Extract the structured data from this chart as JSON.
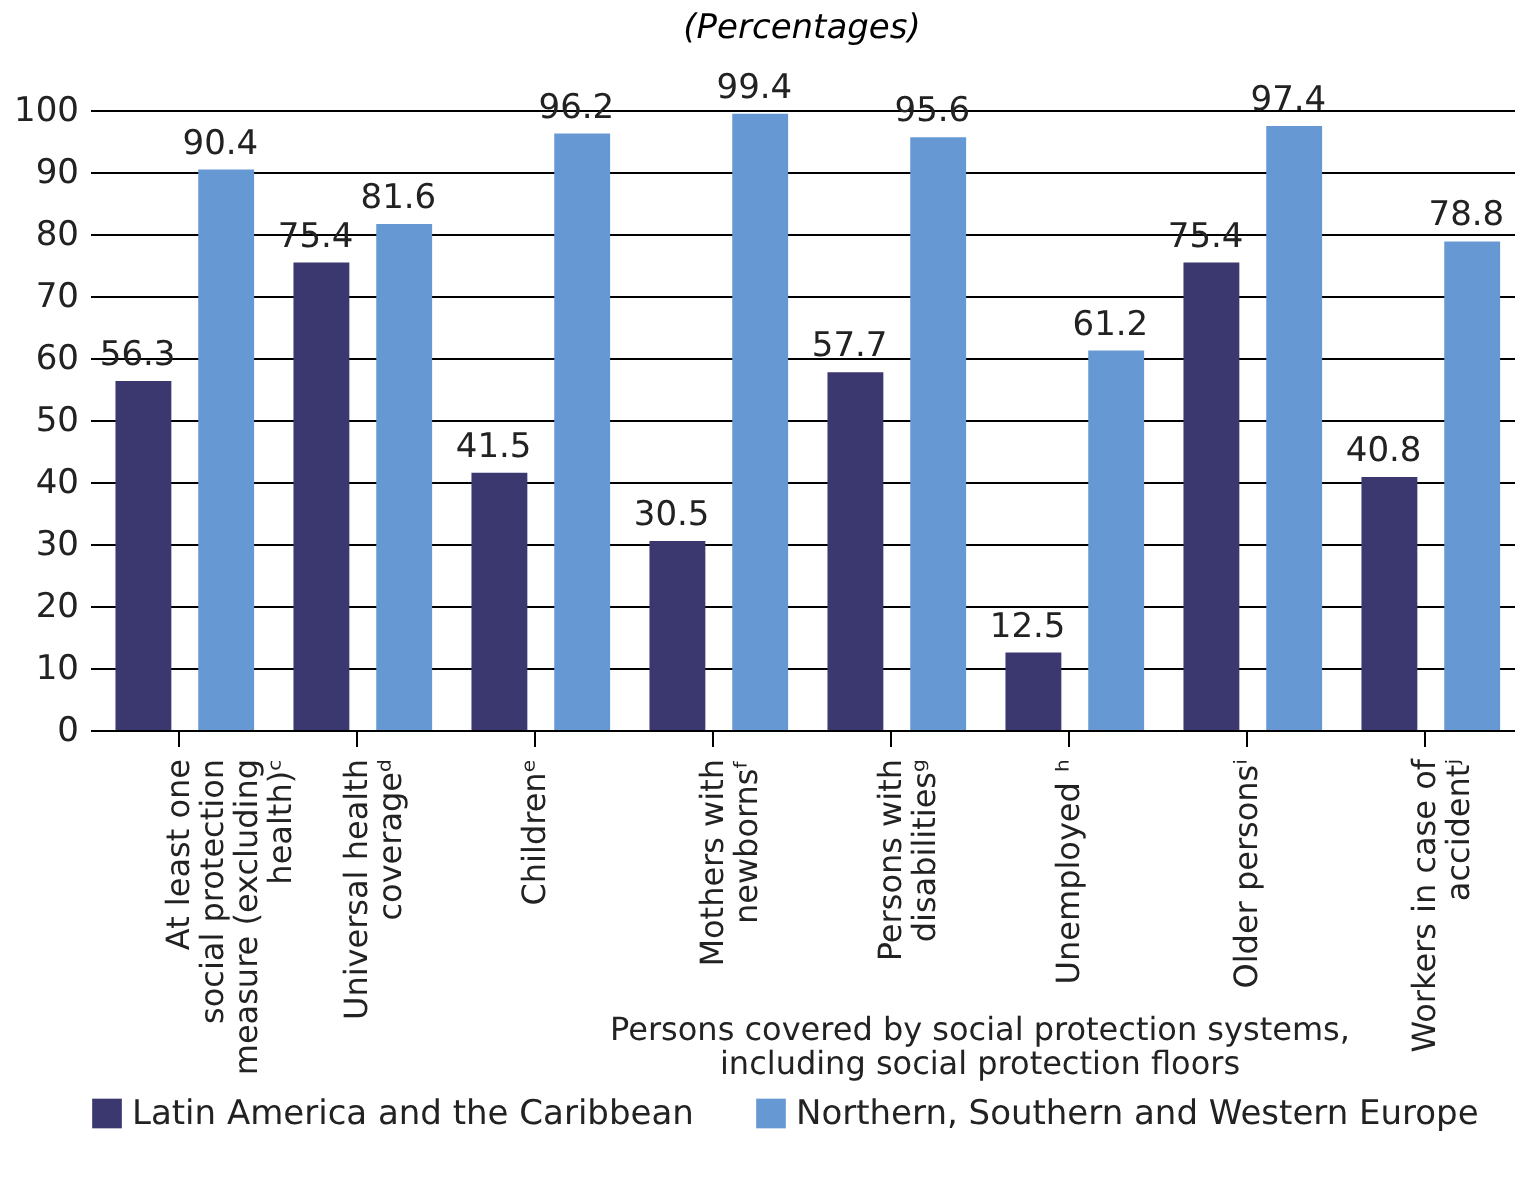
{
  "chart_data": {
    "type": "bar",
    "subtitle": "(Percentages)",
    "categories": [
      "At least one social protection measure (excluding health)ᶜ",
      "Universal health coverageᵈ",
      "Childrenᵉ",
      "Mothers with newbornsᶠ",
      "Persons with disabilitiesᵍ",
      "Unemployed ʰ",
      "Older personsⁱ",
      "Workers in case of accidentʲ"
    ],
    "series": [
      {
        "name": "Latin America and the Caribbean",
        "color": "#3b3870",
        "values": [
          56.3,
          75.4,
          41.5,
          30.5,
          57.7,
          12.5,
          75.4,
          40.8
        ]
      },
      {
        "name": "Northern, Southern and Western Europe",
        "color": "#6699d4",
        "values": [
          90.4,
          81.6,
          96.2,
          99.4,
          95.6,
          61.2,
          97.4,
          78.8
        ]
      }
    ],
    "ylim": [
      0,
      100
    ],
    "yticks": [
      0,
      10,
      20,
      30,
      40,
      50,
      60,
      70,
      80,
      90,
      100
    ],
    "grid": "y",
    "legend": "bottom",
    "data_labels": true,
    "annotations": [
      "Persons covered by social protection systems, including social protection floors"
    ]
  }
}
